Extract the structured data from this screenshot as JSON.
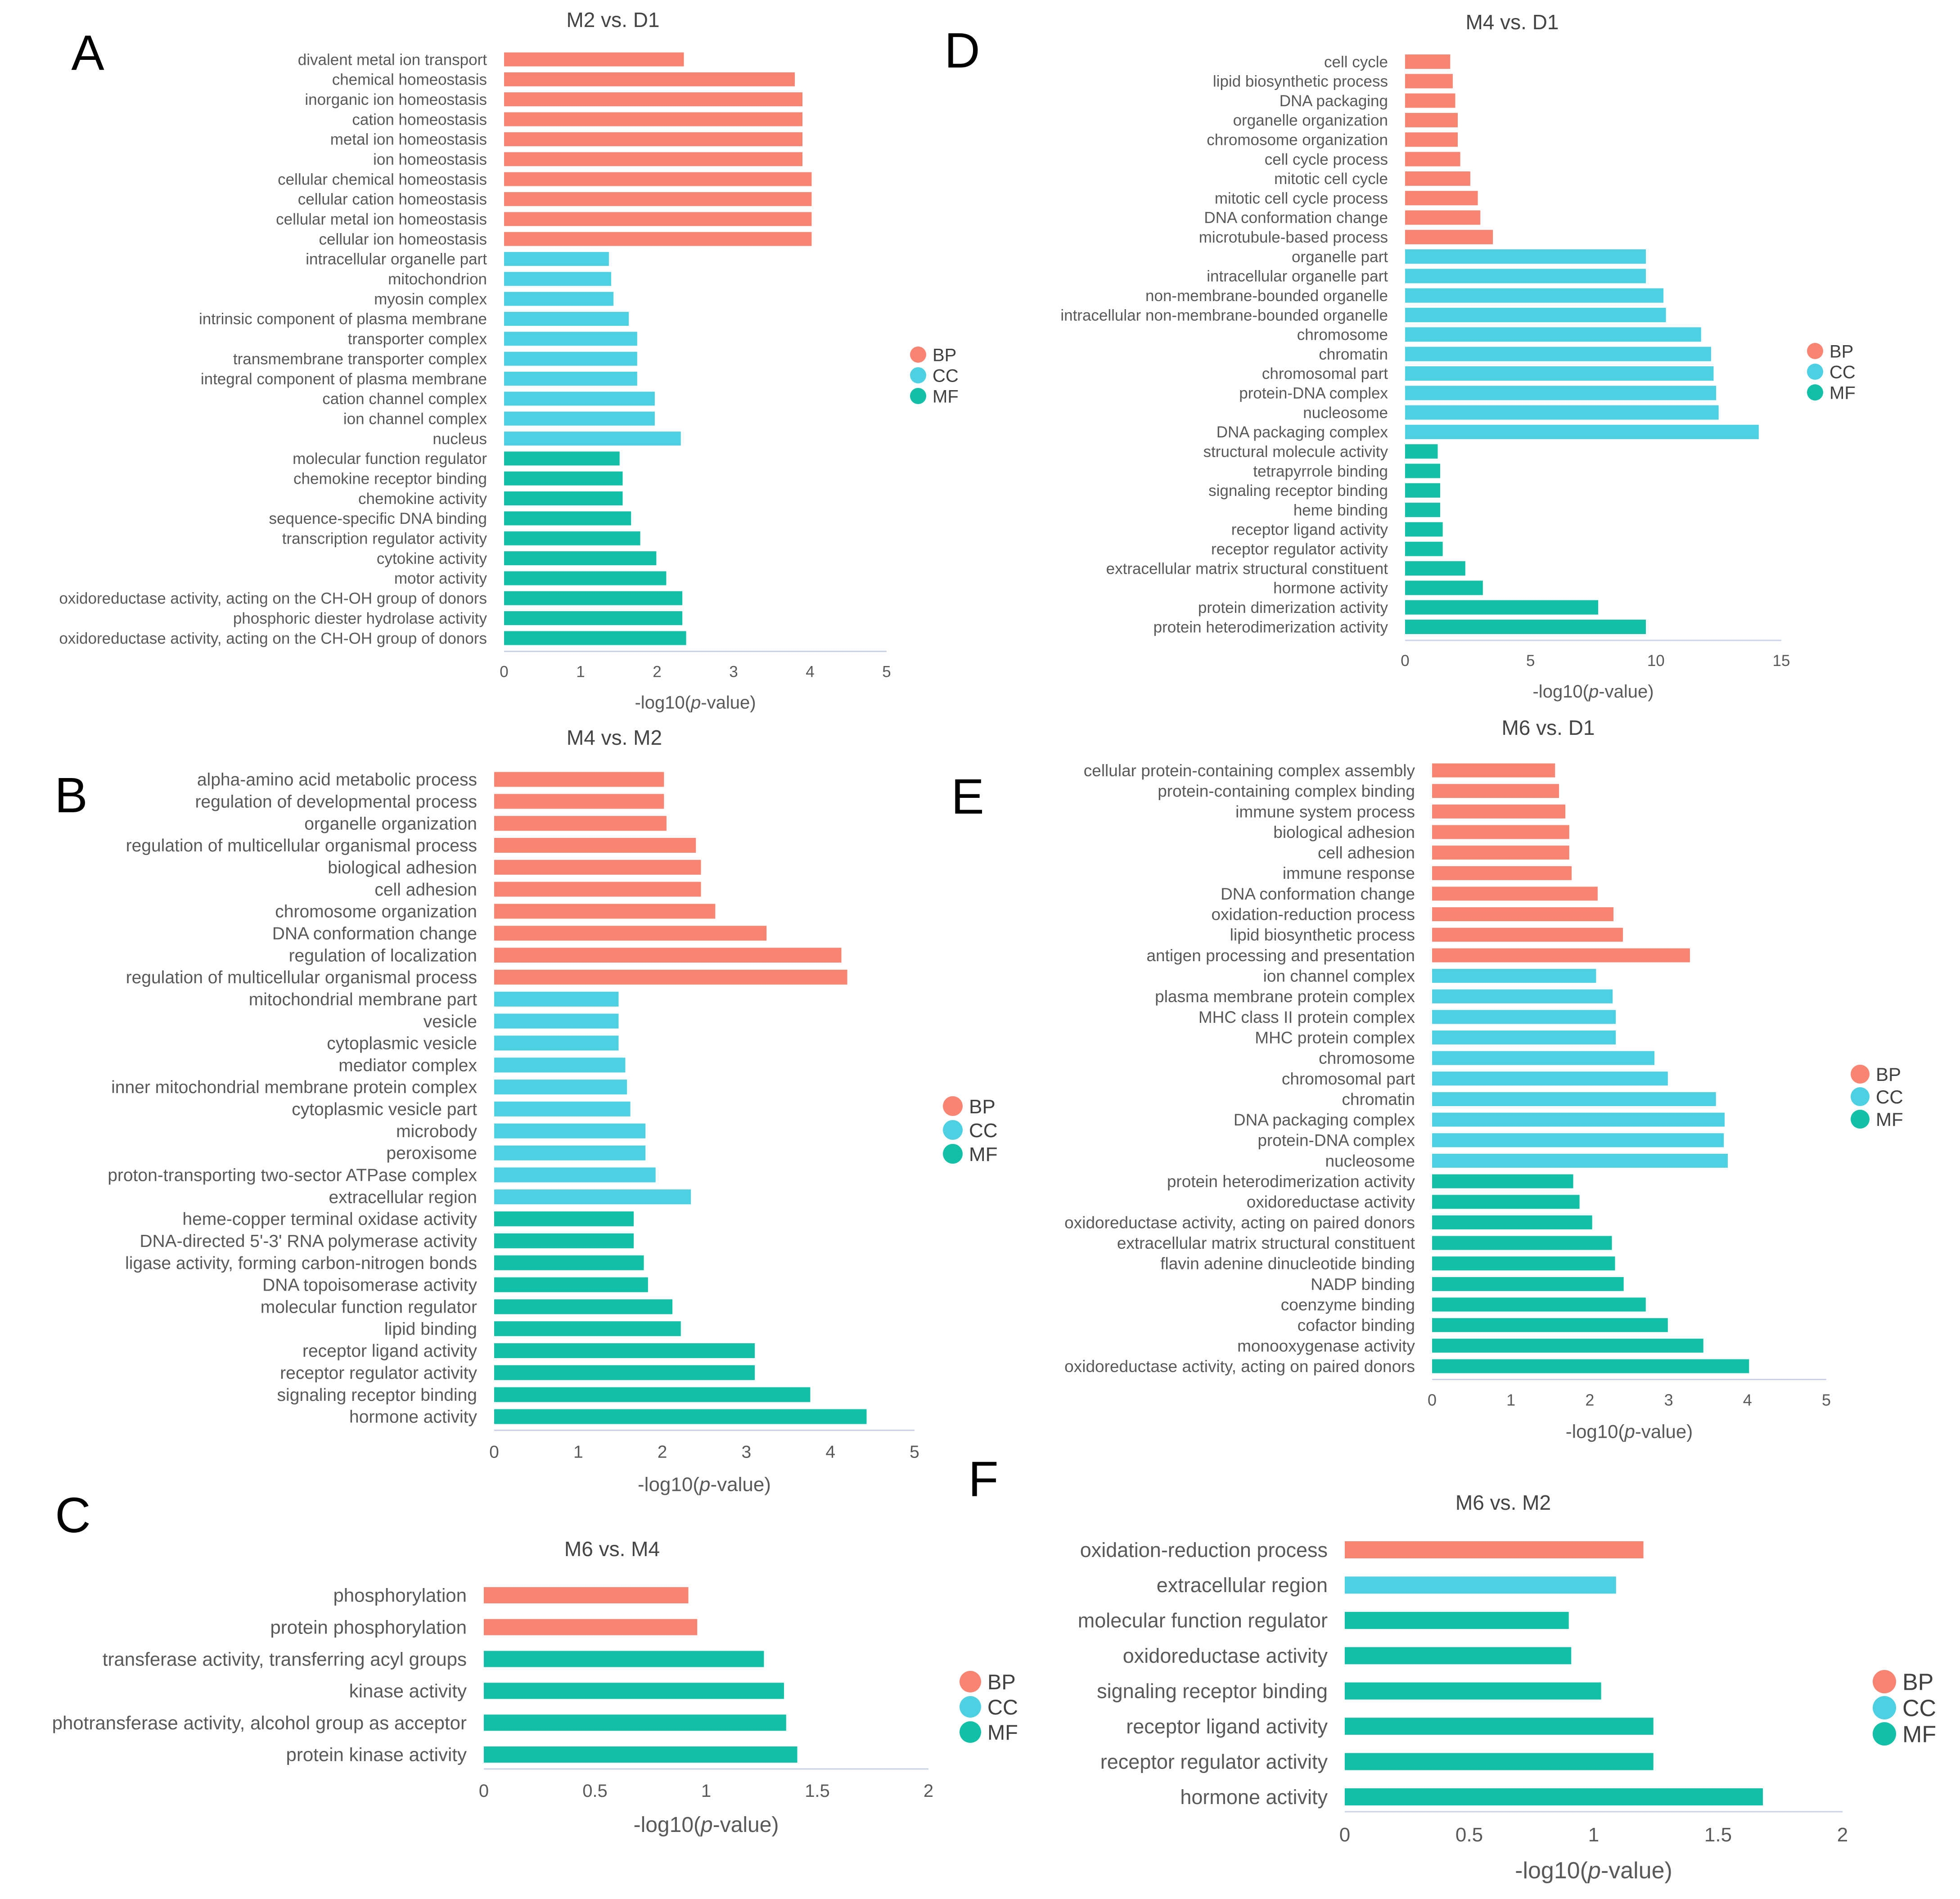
{
  "colors": {
    "BP": "#F98472",
    "CC": "#4DD0E1",
    "MF": "#12BFA7"
  },
  "legend": [
    {
      "key": "BP",
      "label": "BP"
    },
    {
      "key": "CC",
      "label": "CC"
    },
    {
      "key": "MF",
      "label": "MF"
    }
  ],
  "chart_data": [
    {
      "panel": "A",
      "type": "bar",
      "orientation": "horizontal",
      "title": "M2 vs. D1",
      "xlabel": "-log10(p-value)",
      "xlim": [
        0,
        5
      ],
      "xticks": [
        "0",
        "1",
        "2",
        "3",
        "4",
        "5"
      ],
      "categories": [
        "divalent metal ion transport",
        "chemical homeostasis",
        "inorganic ion homeostasis",
        "cation homeostasis",
        "metal ion homeostasis",
        "ion homeostasis",
        "cellular chemical homeostasis",
        "cellular cation homeostasis",
        "cellular metal ion homeostasis",
        "cellular ion homeostasis",
        "intracellular organelle part",
        "mitochondrion",
        "myosin complex",
        "intrinsic component of plasma membrane",
        "transporter complex",
        "transmembrane transporter complex",
        "integral component of plasma membrane",
        "cation channel complex",
        "ion channel complex",
        "nucleus",
        "molecular function regulator",
        "chemokine receptor binding",
        "chemokine activity",
        "sequence-specific DNA binding",
        "transcription regulator activity",
        "cytokine activity",
        "motor activity",
        "oxidoreductase activity, acting on the CH-OH group of donors",
        "phosphoric diester hydrolase activity",
        "oxidoreductase activity, acting on the CH-OH group of donors"
      ],
      "values": [
        2.35,
        3.8,
        3.9,
        3.9,
        3.9,
        3.9,
        4.02,
        4.02,
        4.02,
        4.02,
        1.37,
        1.4,
        1.43,
        1.63,
        1.74,
        1.74,
        1.74,
        1.97,
        1.97,
        2.31,
        1.51,
        1.55,
        1.55,
        1.66,
        1.78,
        1.99,
        2.12,
        2.33,
        2.33,
        2.38
      ],
      "groups": [
        "BP",
        "BP",
        "BP",
        "BP",
        "BP",
        "BP",
        "BP",
        "BP",
        "BP",
        "BP",
        "CC",
        "CC",
        "CC",
        "CC",
        "CC",
        "CC",
        "CC",
        "CC",
        "CC",
        "CC",
        "MF",
        "MF",
        "MF",
        "MF",
        "MF",
        "MF",
        "MF",
        "MF",
        "MF",
        "MF"
      ]
    },
    {
      "panel": "B",
      "type": "bar",
      "orientation": "horizontal",
      "title": "M4 vs. M2",
      "xlabel": "-log10(p-value)",
      "xlim": [
        0,
        5
      ],
      "xticks": [
        "0",
        "1",
        "2",
        "3",
        "4",
        "5"
      ],
      "categories": [
        "alpha-amino acid metabolic process",
        "regulation of developmental process",
        "organelle organization",
        "regulation of multicellular organismal process",
        "biological adhesion",
        "cell adhesion",
        "chromosome organization",
        "DNA conformation change",
        "regulation of localization",
        "regulation of multicellular organismal process",
        "mitochondrial membrane part",
        "vesicle",
        "cytoplasmic vesicle",
        "mediator complex",
        "inner mitochondrial membrane protein complex",
        "cytoplasmic vesicle part",
        "microbody",
        "peroxisome",
        "proton-transporting two-sector ATPase complex",
        "extracellular region",
        "heme-copper terminal oxidase activity",
        "DNA-directed 5'-3' RNA polymerase activity",
        "ligase activity, forming carbon-nitrogen bonds",
        "DNA topoisomerase activity",
        "molecular function regulator",
        "lipid binding",
        "receptor ligand activity",
        "receptor regulator activity",
        "signaling receptor binding",
        "hormone activity"
      ],
      "values": [
        2.02,
        2.02,
        2.05,
        2.4,
        2.46,
        2.46,
        2.63,
        3.24,
        4.13,
        4.2,
        1.48,
        1.48,
        1.48,
        1.56,
        1.58,
        1.62,
        1.8,
        1.8,
        1.92,
        2.34,
        1.66,
        1.66,
        1.78,
        1.83,
        2.12,
        2.22,
        3.1,
        3.1,
        3.76,
        4.43
      ],
      "groups": [
        "BP",
        "BP",
        "BP",
        "BP",
        "BP",
        "BP",
        "BP",
        "BP",
        "BP",
        "BP",
        "CC",
        "CC",
        "CC",
        "CC",
        "CC",
        "CC",
        "CC",
        "CC",
        "CC",
        "CC",
        "MF",
        "MF",
        "MF",
        "MF",
        "MF",
        "MF",
        "MF",
        "MF",
        "MF",
        "MF"
      ]
    },
    {
      "panel": "C",
      "type": "bar",
      "orientation": "horizontal",
      "title": "M6 vs. M4",
      "xlabel": "-log10(p-value)",
      "xlim": [
        0,
        2
      ],
      "xticks": [
        "0",
        "0.5",
        "1",
        "1.5",
        "2"
      ],
      "categories": [
        "phosphorylation",
        "protein phosphorylation",
        "transferase activity, transferring acyl groups",
        "kinase activity",
        "photransferase activity, alcohol group as acceptor",
        "protein kinase activity"
      ],
      "values": [
        0.92,
        0.96,
        1.26,
        1.35,
        1.36,
        1.41
      ],
      "groups": [
        "BP",
        "BP",
        "MF",
        "MF",
        "MF",
        "MF"
      ]
    },
    {
      "panel": "D",
      "type": "bar",
      "orientation": "horizontal",
      "title": "M4 vs. D1",
      "xlabel": "-log10(p-value)",
      "xlim": [
        0,
        15
      ],
      "xticks": [
        "0",
        "5",
        "10",
        "15"
      ],
      "categories": [
        "cell cycle",
        "lipid biosynthetic process",
        "DNA packaging",
        "organelle organization",
        "chromosome organization",
        "cell cycle process",
        "mitotic cell cycle",
        "mitotic cell cycle process",
        "DNA conformation change",
        "microtubule-based process",
        "organelle part",
        "intracellular organelle part",
        "non-membrane-bounded organelle",
        "intracellular non-membrane-bounded organelle",
        "chromosome",
        "chromatin",
        "chromosomal part",
        "protein-DNA complex",
        "nucleosome",
        "DNA packaging complex",
        "structural molecule activity",
        "tetrapyrrole binding",
        "signaling receptor binding",
        "heme binding",
        "receptor ligand activity",
        "receptor regulator activity",
        "extracellular matrix structural constituent",
        "hormone activity",
        "protein dimerization activity",
        "protein heterodimerization activity"
      ],
      "values": [
        1.8,
        1.9,
        2.0,
        2.1,
        2.1,
        2.2,
        2.6,
        2.9,
        3.0,
        3.5,
        9.6,
        9.6,
        10.3,
        10.4,
        11.8,
        12.2,
        12.3,
        12.4,
        12.5,
        14.1,
        1.3,
        1.4,
        1.4,
        1.4,
        1.5,
        1.5,
        2.4,
        3.1,
        7.7,
        9.6
      ],
      "groups": [
        "BP",
        "BP",
        "BP",
        "BP",
        "BP",
        "BP",
        "BP",
        "BP",
        "BP",
        "BP",
        "CC",
        "CC",
        "CC",
        "CC",
        "CC",
        "CC",
        "CC",
        "CC",
        "CC",
        "CC",
        "MF",
        "MF",
        "MF",
        "MF",
        "MF",
        "MF",
        "MF",
        "MF",
        "MF",
        "MF"
      ]
    },
    {
      "panel": "E",
      "type": "bar",
      "orientation": "horizontal",
      "title": "M6 vs. D1",
      "xlabel": "-log10(p-value)",
      "xlim": [
        0,
        5
      ],
      "xticks": [
        "0",
        "1",
        "2",
        "3",
        "4",
        "5"
      ],
      "categories": [
        "cellular protein-containing complex assembly",
        "protein-containing complex binding",
        "immune system process",
        "biological adhesion",
        "cell adhesion",
        "immune response",
        "DNA conformation change",
        "oxidation-reduction process",
        "lipid biosynthetic process",
        "antigen processing and presentation",
        "ion channel complex",
        "plasma membrane protein complex",
        "MHC class II protein complex",
        "MHC protein complex",
        "chromosome",
        "chromosomal part",
        "chromatin",
        "DNA packaging complex",
        "protein-DNA complex",
        "nucleosome",
        "protein heterodimerization activity",
        "oxidoreductase activity",
        "oxidoreductase activity, acting on paired donors",
        "extracellular matrix structural constituent",
        "flavin adenine dinucleotide binding",
        "NADP binding",
        "coenzyme binding",
        "cofactor binding",
        "monooxygenase activity",
        "oxidoreductase activity, acting on paired donors"
      ],
      "values": [
        1.56,
        1.61,
        1.69,
        1.74,
        1.74,
        1.77,
        2.1,
        2.3,
        2.42,
        3.27,
        2.08,
        2.29,
        2.33,
        2.33,
        2.82,
        2.99,
        3.6,
        3.71,
        3.7,
        3.75,
        1.79,
        1.87,
        2.03,
        2.28,
        2.32,
        2.43,
        2.71,
        2.99,
        3.44,
        4.02
      ],
      "groups": [
        "BP",
        "BP",
        "BP",
        "BP",
        "BP",
        "BP",
        "BP",
        "BP",
        "BP",
        "BP",
        "CC",
        "CC",
        "CC",
        "CC",
        "CC",
        "CC",
        "CC",
        "CC",
        "CC",
        "CC",
        "MF",
        "MF",
        "MF",
        "MF",
        "MF",
        "MF",
        "MF",
        "MF",
        "MF",
        "MF"
      ]
    },
    {
      "panel": "F",
      "type": "bar",
      "orientation": "horizontal",
      "title": "M6 vs. M2",
      "xlabel": "-log10(p-value)",
      "xlim": [
        0,
        2
      ],
      "xticks": [
        "0",
        "0.5",
        "1",
        "1.5",
        "2"
      ],
      "categories": [
        "oxidation-reduction process",
        "extracellular region",
        "molecular function regulator",
        "oxidoreductase activity",
        "signaling receptor binding",
        "receptor ligand activity",
        "receptor regulator activity",
        "hormone activity"
      ],
      "values": [
        1.2,
        1.09,
        0.9,
        0.91,
        1.03,
        1.24,
        1.24,
        1.68
      ],
      "groups": [
        "BP",
        "CC",
        "MF",
        "MF",
        "MF",
        "MF",
        "MF",
        "MF"
      ]
    }
  ]
}
